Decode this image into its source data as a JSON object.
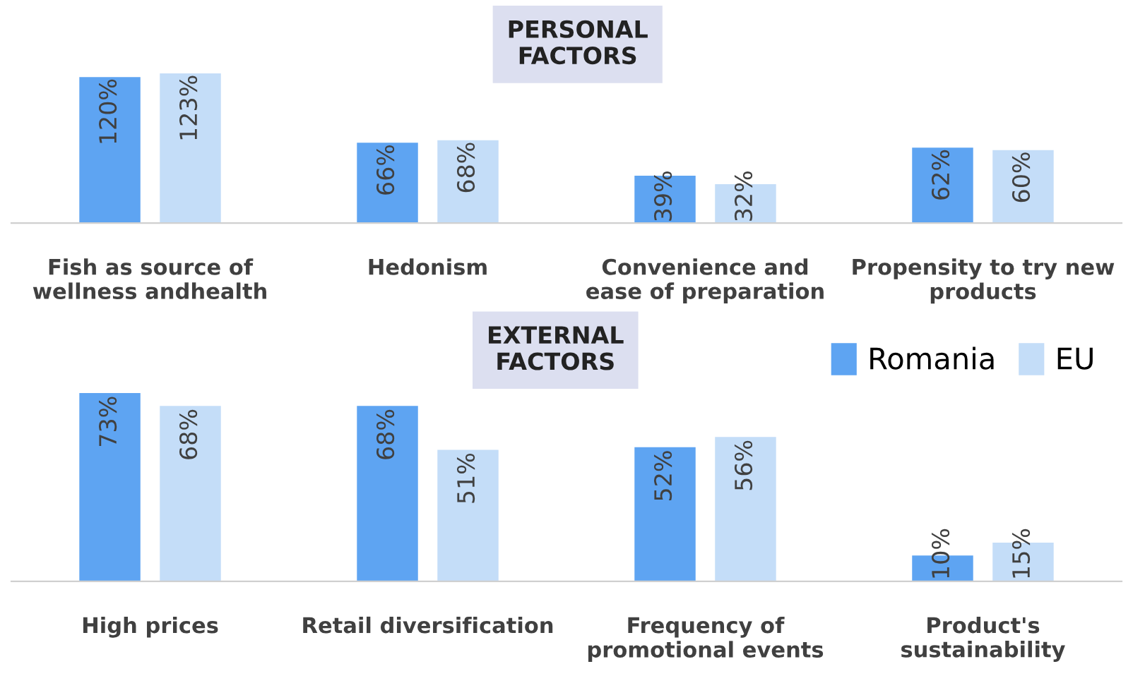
{
  "chart_data": [
    {
      "type": "bar",
      "title": "PERSONAL\nFACTORS",
      "categories": [
        "Fish as source of\nwellness andhealth",
        "Hedonism",
        "Convenience and\nease of preparation",
        "Propensity to try new\nproducts"
      ],
      "series": [
        {
          "color": "#5ea4f2",
          "values": [
            120,
            66,
            39,
            62
          ],
          "value_labels": [
            "120%",
            "66%",
            "39%",
            "62%"
          ]
        },
        {
          "color": "#c4ddf8",
          "values": [
            123,
            68,
            32,
            60
          ],
          "value_labels": [
            "123%",
            "68%",
            "32%",
            "60%"
          ]
        }
      ],
      "legend": false
    },
    {
      "type": "bar",
      "title": "EXTERNAL\nFACTORS",
      "categories": [
        "High prices",
        "Retail diversification",
        "Frequency of\npromotional events",
        "Product's\nsustainability"
      ],
      "series": [
        {
          "name": "Romania",
          "color": "#5ea4f2",
          "values": [
            73,
            68,
            52,
            10
          ],
          "value_labels": [
            "73%",
            "68%",
            "52%",
            "10%"
          ]
        },
        {
          "name": "EU",
          "color": "#c4ddf8",
          "values": [
            68,
            51,
            56,
            15
          ],
          "value_labels": [
            "68%",
            "51%",
            "56%",
            "15%"
          ]
        }
      ],
      "legend": "top right"
    }
  ]
}
